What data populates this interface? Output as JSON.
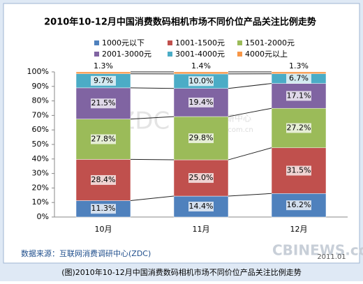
{
  "chart_data": {
    "type": "stacked_bar",
    "title": "2010年10-12月中国消费数码相机市场不同价位产品关注比例走势",
    "categories": [
      "10月",
      "11月",
      "12月"
    ],
    "series": [
      {
        "name": "1000元以下",
        "color": "#4f81bd",
        "values": [
          11.3,
          14.4,
          16.2
        ],
        "value_labels": [
          "11.3%",
          "14.4%",
          "16.2%"
        ]
      },
      {
        "name": "1001-1500元",
        "color": "#c0504d",
        "values": [
          28.4,
          25.0,
          31.5
        ],
        "value_labels": [
          "28.4%",
          "25.0%",
          "31.5%"
        ]
      },
      {
        "name": "1501-2000元",
        "color": "#9bbb59",
        "values": [
          27.8,
          29.8,
          27.2
        ],
        "value_labels": [
          "27.8%",
          "29.8%",
          "27.2%"
        ]
      },
      {
        "name": "2001-3000元",
        "color": "#8064a2",
        "values": [
          21.5,
          19.4,
          17.1
        ],
        "value_labels": [
          "21.5%",
          "19.4%",
          "17.1%"
        ]
      },
      {
        "name": "3001-4000元",
        "color": "#4bacc6",
        "values": [
          9.7,
          10.0,
          6.7
        ],
        "value_labels": [
          "9.7%",
          "10.0%",
          "6.7%"
        ]
      },
      {
        "name": "4000元以上",
        "color": "#f79646",
        "values": [
          1.3,
          1.4,
          1.3
        ],
        "value_labels": [
          "1.3%",
          "1.4%",
          "1.3%"
        ]
      }
    ],
    "ylim": [
      0,
      100
    ],
    "yticks": [
      {
        "value": 0,
        "label": "0%"
      },
      {
        "value": 10,
        "label": "10%"
      },
      {
        "value": 20,
        "label": "20%"
      },
      {
        "value": 30,
        "label": "30%"
      },
      {
        "value": 40,
        "label": "40%"
      },
      {
        "value": 50,
        "label": "50%"
      },
      {
        "value": 60,
        "label": "60%"
      },
      {
        "value": 70,
        "label": "70%"
      },
      {
        "value": 80,
        "label": "80%"
      },
      {
        "value": 90,
        "label": "90%"
      },
      {
        "value": 100,
        "label": "100%"
      }
    ],
    "source": "数据来源：互联网消费调研中心(ZDC)",
    "date": "2011.01",
    "watermarks": [
      "ZDC",
      "互联网消费调研中心",
      "www.zdc.zol.com.cn",
      "CBINEWS.com"
    ]
  },
  "caption": "(图)2010年10-12月中国消费数码相机市场不同价位产品关注比例走势"
}
